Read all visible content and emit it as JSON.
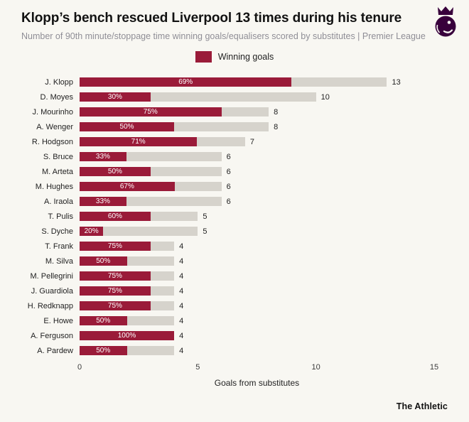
{
  "header": {
    "title": "Klopp’s bench rescued Liverpool 13 times during his tenure",
    "subtitle": "Number of 90th minute/stoppage time winning goals/equalisers scored by substitutes | Premier League"
  },
  "legend": {
    "label": "Winning goals"
  },
  "colors": {
    "accent": "#9a1b39",
    "bar_remainder": "#d6d3cc",
    "premier_league_purple": "#38003c",
    "background": "#f8f7f2"
  },
  "chart_data": {
    "type": "bar",
    "orientation": "horizontal",
    "title": "Klopp’s bench rescued Liverpool 13 times during his tenure",
    "subtitle": "Number of 90th minute/stoppage time winning goals/equalisers scored by substitutes | Premier League",
    "xlabel": "Goals from substitutes",
    "xlim": [
      0,
      15
    ],
    "x_ticks": [
      0,
      5,
      10,
      15
    ],
    "legend": [
      "Winning goals"
    ],
    "legend_position": "top-center",
    "grid": false,
    "rows": [
      {
        "manager": "J. Klopp",
        "total": 13,
        "winning_pct": 69
      },
      {
        "manager": "D. Moyes",
        "total": 10,
        "winning_pct": 30
      },
      {
        "manager": "J. Mourinho",
        "total": 8,
        "winning_pct": 75
      },
      {
        "manager": "A. Wenger",
        "total": 8,
        "winning_pct": 50
      },
      {
        "manager": "R. Hodgson",
        "total": 7,
        "winning_pct": 71
      },
      {
        "manager": "S. Bruce",
        "total": 6,
        "winning_pct": 33
      },
      {
        "manager": "M. Arteta",
        "total": 6,
        "winning_pct": 50
      },
      {
        "manager": "M. Hughes",
        "total": 6,
        "winning_pct": 67
      },
      {
        "manager": "A. Iraola",
        "total": 6,
        "winning_pct": 33
      },
      {
        "manager": "T. Pulis",
        "total": 5,
        "winning_pct": 60
      },
      {
        "manager": "S. Dyche",
        "total": 5,
        "winning_pct": 20
      },
      {
        "manager": "T. Frank",
        "total": 4,
        "winning_pct": 75
      },
      {
        "manager": "M. Silva",
        "total": 4,
        "winning_pct": 50
      },
      {
        "manager": "M. Pellegrini",
        "total": 4,
        "winning_pct": 75
      },
      {
        "manager": "J. Guardiola",
        "total": 4,
        "winning_pct": 75
      },
      {
        "manager": "H. Redknapp",
        "total": 4,
        "winning_pct": 75
      },
      {
        "manager": "E. Howe",
        "total": 4,
        "winning_pct": 50
      },
      {
        "manager": "A. Ferguson",
        "total": 4,
        "winning_pct": 100
      },
      {
        "manager": "A. Pardew",
        "total": 4,
        "winning_pct": 50
      }
    ]
  },
  "footer": {
    "brand": "The Athletic"
  }
}
